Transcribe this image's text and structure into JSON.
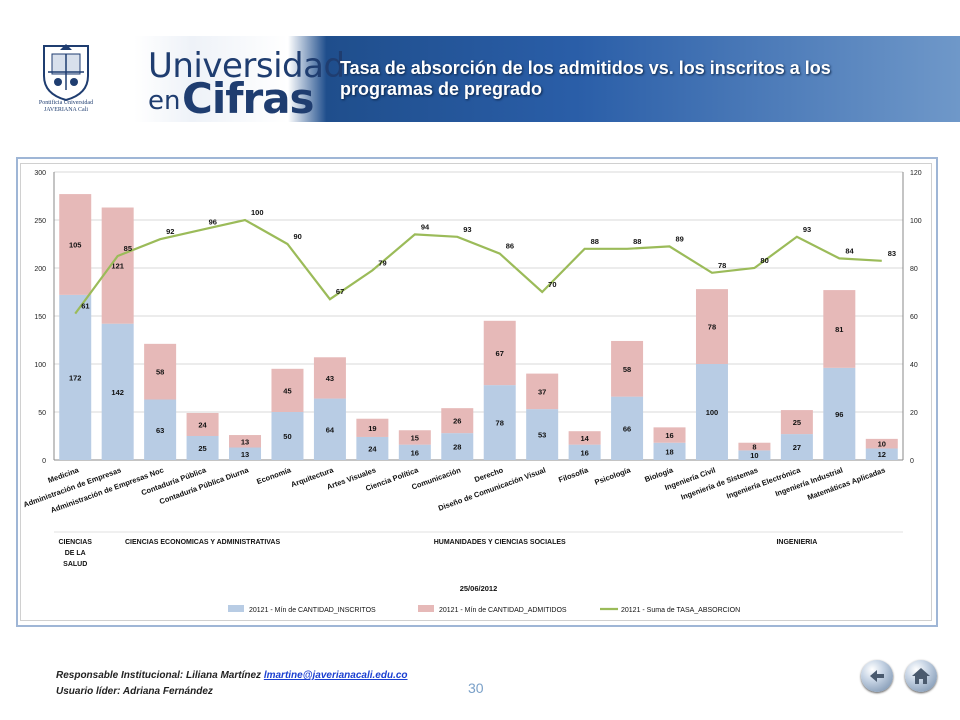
{
  "header": {
    "brand_line1": "Universidad",
    "brand_line2a": "en",
    "brand_line2b": "Cifras",
    "crest_text": "Pontificia Universidad JAVERIANA Cali",
    "title": "Tasa de absorción de los admitidos vs. los inscritos a los programas de pregrado"
  },
  "footer": {
    "responsible_label": "Responsable Institucional: Liliana Martínez",
    "email": "lmartine@javerianacali.edu.co",
    "leader": "Usuario líder: Adriana Fernández",
    "page_number": "30"
  },
  "nav": {
    "back_icon": "back-arrow-icon",
    "home_icon": "home-icon"
  },
  "colors": {
    "inscritos": "#b8cce4",
    "admitidos": "#e6b9b8",
    "tasa": "#9bbb59"
  },
  "chart_data": {
    "type": "bar",
    "stacked": true,
    "categories": [
      "Medicina",
      "Administración de Empresas",
      "Administración de Empresas Noc",
      "Contaduría Pública",
      "Contaduría Pública Diurna",
      "Economía",
      "Arquitectura",
      "Artes Visuales",
      "Ciencia Política",
      "Comunicación",
      "Derecho",
      "Diseño de Comunicación Visual",
      "Filosofía",
      "Psicología",
      "Biología",
      "Ingeniería Civil",
      "Ingeniería de Sistemas",
      "Ingeniería Electrónica",
      "Ingeniería Industrial",
      "Matemáticas Aplicadas"
    ],
    "series": [
      {
        "name": "20121 - Mín de CANTIDAD_INSCRITOS",
        "values": [
          172,
          142,
          63,
          25,
          13,
          50,
          64,
          24,
          16,
          28,
          78,
          53,
          16,
          66,
          18,
          100,
          10,
          27,
          96,
          12
        ]
      },
      {
        "name": "20121 - Mín de CANTIDAD_ADMITIDOS",
        "values": [
          105,
          121,
          58,
          24,
          13,
          45,
          43,
          19,
          15,
          26,
          67,
          37,
          14,
          58,
          16,
          78,
          8,
          25,
          81,
          10
        ]
      },
      {
        "name": "20121 - Suma de TASA_ABSORCION",
        "values": [
          61,
          85,
          92,
          96,
          100,
          90,
          67,
          79,
          94,
          93,
          86,
          70,
          88,
          88,
          89,
          78,
          80,
          93,
          84,
          83
        ],
        "axis": "right",
        "type": "line"
      }
    ],
    "ylim": [
      0,
      300
    ],
    "yticks": [
      0,
      50,
      100,
      150,
      200,
      250,
      300
    ],
    "y2lim": [
      0,
      120
    ],
    "y2ticks": [
      0,
      20,
      40,
      60,
      80,
      100,
      120
    ],
    "groups": [
      {
        "label": "CIENCIAS DE LA SALUD",
        "start": 0,
        "end": 0
      },
      {
        "label": "CIENCIAS ECONOMICAS Y ADMINISTRATIVAS",
        "start": 1,
        "end": 5
      },
      {
        "label": "HUMANIDADES Y CIENCIAS SOCIALES",
        "start": 6,
        "end": 14
      },
      {
        "label": "INGENIERIA",
        "start": 15,
        "end": 19
      }
    ],
    "xlabel": "25/06/2012",
    "legend_position": "bottom",
    "grid": true
  }
}
